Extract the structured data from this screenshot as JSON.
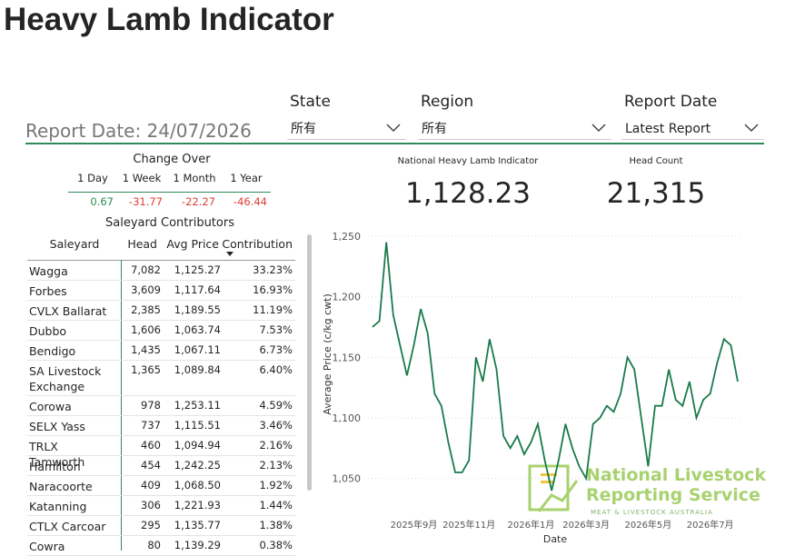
{
  "header": {
    "title": "Heavy Lamb Indicator",
    "report_date": "Report Date: 24/07/2026"
  },
  "filters": [
    {
      "label": "State",
      "value": "所有"
    },
    {
      "label": "Region",
      "value": "所有"
    },
    {
      "label": "Report Date",
      "value": "Latest Report"
    }
  ],
  "change_over": {
    "title": "Change Over",
    "columns": [
      "1 Day",
      "1 Week",
      "1 Month",
      "1 Year"
    ],
    "values": [
      "0.67",
      "-31.77",
      "-22.27",
      "-46.44"
    ]
  },
  "kpis": [
    {
      "label": "National Heavy Lamb Indicator",
      "value": "1,128.23"
    },
    {
      "label": "Head Count",
      "value": "21,315"
    }
  ],
  "table": {
    "title": "Saleyard Contributors",
    "columns": [
      "Saleyard",
      "Head",
      "Avg Price",
      "Contribution"
    ],
    "rows": [
      [
        "Wagga",
        "7,082",
        "1,125.27",
        "33.23%"
      ],
      [
        "Forbes",
        "3,609",
        "1,117.64",
        "16.93%"
      ],
      [
        "CVLX Ballarat",
        "2,385",
        "1,189.55",
        "11.19%"
      ],
      [
        "Dubbo",
        "1,606",
        "1,063.74",
        "7.53%"
      ],
      [
        "Bendigo",
        "1,435",
        "1,067.11",
        "6.73%"
      ],
      [
        "SA Livestock Exchange",
        "1,365",
        "1,089.84",
        "6.40%"
      ],
      [
        "Corowa",
        "978",
        "1,253.11",
        "4.59%"
      ],
      [
        "SELX Yass",
        "737",
        "1,115.51",
        "3.46%"
      ],
      [
        "TRLX Tamworth",
        "460",
        "1,094.94",
        "2.16%"
      ],
      [
        "Hamilton",
        "454",
        "1,242.25",
        "2.13%"
      ],
      [
        "Naracoorte",
        "409",
        "1,068.50",
        "1.92%"
      ],
      [
        "Katanning",
        "306",
        "1,221.93",
        "1.44%"
      ],
      [
        "CTLX Carcoar",
        "295",
        "1,135.77",
        "1.38%"
      ],
      [
        "Cowra",
        "80",
        "1,139.29",
        "0.38%"
      ]
    ]
  },
  "logo": {
    "lines": [
      "National Livestock",
      "Reporting Service"
    ],
    "tagline": "MEAT & LIVESTOCK AUSTRALIA"
  },
  "chart_data": {
    "type": "line",
    "x_label": "Date",
    "y_label": "Average Price (c/kg cwt)",
    "color": "#1a7a4c",
    "grid": true,
    "categories": [
      null,
      null,
      null,
      null,
      null,
      null,
      "2025年9月",
      null,
      null,
      null,
      null,
      null,
      null,
      null,
      "2025年11月",
      null,
      null,
      null,
      null,
      null,
      null,
      null,
      null,
      "2026年1月",
      null,
      null,
      null,
      null,
      null,
      null,
      null,
      "2026年3月",
      null,
      null,
      null,
      null,
      null,
      null,
      null,
      null,
      "2026年5月",
      null,
      null,
      null,
      null,
      null,
      null,
      null,
      null,
      "2026年7月",
      null,
      null,
      null,
      null
    ],
    "values": [
      1175,
      1180,
      1245,
      1185,
      1160,
      1135,
      1160,
      1190,
      1170,
      1120,
      1110,
      1080,
      1055,
      1055,
      1065,
      1150,
      1130,
      1165,
      1140,
      1085,
      1075,
      1085,
      1070,
      1080,
      1095,
      1065,
      1040,
      1065,
      1095,
      1075,
      1060,
      1050,
      1095,
      1100,
      1110,
      1105,
      1120,
      1150,
      1140,
      1100,
      1060,
      1110,
      1110,
      1140,
      1115,
      1110,
      1130,
      1100,
      1115,
      1120,
      1145,
      1165,
      1160,
      1130
    ],
    "ylim": [
      1025,
      1250
    ],
    "yticks": [
      {
        "value": 1050,
        "label": "1,050"
      },
      {
        "value": 1100,
        "label": "1,100"
      },
      {
        "value": 1150,
        "label": "1,150"
      },
      {
        "value": 1200,
        "label": "1,200"
      },
      {
        "value": 1250,
        "label": "1,250"
      }
    ]
  }
}
